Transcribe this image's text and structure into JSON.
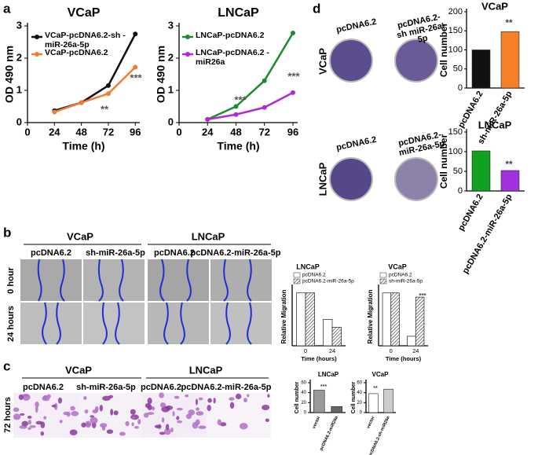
{
  "panels": [
    "a",
    "b",
    "c",
    "d"
  ],
  "panel_b": {
    "groups": [
      "VCaP",
      "LNCaP"
    ],
    "columns": [
      "pcDNA6.2",
      "sh-miR-26a-5p",
      "pcDNA6.2",
      "pcDNA6.2-miR-26a-5p"
    ],
    "rows": [
      "0 hour",
      "24 hours"
    ]
  },
  "panel_c": {
    "groups": [
      "VCaP",
      "LNCaP"
    ],
    "columns": [
      "pcDNA6.2",
      "sh-miR-26a-5p",
      "pcDNA6.2",
      "pcDNA6.2-miR-26a-5p"
    ],
    "rows": [
      "72 hours"
    ]
  },
  "panel_d": {
    "columns": [
      "pcDNA6.2",
      "pcDNA6.2-sh miR-26a-5p"
    ],
    "lncap_columns": [
      "pcDNA6.2",
      "pcDNA6.2- miR-26a-5p"
    ],
    "rows": [
      "VCaP",
      "LNCaP"
    ]
  },
  "chart_data": [
    {
      "type": "line",
      "title": "VCaP",
      "x": [
        24,
        48,
        72,
        96
      ],
      "xlim": [
        0,
        100
      ],
      "xticks": [
        0,
        24,
        48,
        72,
        96
      ],
      "ylim": [
        0,
        3
      ],
      "yticks": [
        0,
        1,
        2,
        3
      ],
      "xlabel": "Time (h)",
      "ylabel": "OD 490 nm",
      "legend": "upper left",
      "series": [
        {
          "name": "VCaP-pcDNA6.2-sh -miR-26a-5p",
          "color": "#111111",
          "values": [
            0.37,
            0.62,
            1.15,
            2.75
          ]
        },
        {
          "name": "VCaP-pcDNA6.2",
          "color": "#f07d35",
          "values": [
            0.33,
            0.62,
            0.9,
            1.72
          ]
        }
      ],
      "annotations": [
        "***",
        "**"
      ]
    },
    {
      "type": "line",
      "title": "LNCaP",
      "x": [
        24,
        48,
        72,
        96
      ],
      "xlim": [
        0,
        100
      ],
      "xticks": [
        0,
        24,
        48,
        72,
        96
      ],
      "ylim": [
        0,
        3
      ],
      "yticks": [
        0,
        1,
        2,
        3
      ],
      "xlabel": "Time (h)",
      "ylabel": "OD 490 nm",
      "legend": "upper left",
      "series": [
        {
          "name": "LNCaP-pcDNA6.2",
          "color": "#1e8a2e",
          "values": [
            0.1,
            0.5,
            1.3,
            2.78
          ]
        },
        {
          "name": "LNCaP-pcDNA6.2 -miR26a",
          "color": "#b028d8",
          "values": [
            0.1,
            0.25,
            0.47,
            0.93
          ]
        }
      ],
      "annotations": [
        "***",
        "***"
      ]
    },
    {
      "type": "bar",
      "title": "VCaP",
      "categories": [
        "pcDNA6.2",
        "sh-miR-26a-5p"
      ],
      "values": [
        100,
        148
      ],
      "colors": [
        "#111111",
        "#f4812a"
      ],
      "ylim": [
        0,
        200
      ],
      "yticks": [
        0,
        50,
        100,
        150,
        200
      ],
      "ylabel": "Cell number",
      "annotations": [
        "**"
      ]
    },
    {
      "type": "bar",
      "title": "LNCaP",
      "categories": [
        "pcDNA6.2",
        "pcDNA6.2-miR-26a-5p"
      ],
      "values": [
        102,
        52
      ],
      "colors": [
        "#12a020",
        "#a030e0"
      ],
      "ylim": [
        0,
        150
      ],
      "yticks": [
        0,
        50,
        100,
        150
      ],
      "ylabel": "Cell number",
      "annotations": [
        "**"
      ]
    },
    {
      "type": "bar",
      "title": "LNCaP",
      "categories": [
        "0",
        "24"
      ],
      "xlabel": "Time (hours)",
      "ylabel": "Relative Migration",
      "ylim": [
        0,
        1.1
      ],
      "series": [
        {
          "name": "pcDNA6.2",
          "color": "#ffffff",
          "values": [
            1.0,
            0.5
          ]
        },
        {
          "name": "pcDNA6.2-miR-26a-5p",
          "color": "#444444",
          "hatch": true,
          "values": [
            1.0,
            0.35
          ]
        }
      ]
    },
    {
      "type": "bar",
      "title": "VCaP",
      "categories": [
        "0",
        "24"
      ],
      "xlabel": "Time (hours)",
      "ylabel": "Relative Migration",
      "ylim": [
        0,
        1.1
      ],
      "series": [
        {
          "name": "pcDNA6.2",
          "color": "#ffffff",
          "values": [
            1.0,
            0.18
          ]
        },
        {
          "name": "sh-miR-26a-5p",
          "color": "#444444",
          "hatch": true,
          "values": [
            1.0,
            0.92
          ]
        }
      ],
      "annotations": [
        "***"
      ]
    },
    {
      "type": "bar",
      "title": "LNCaP",
      "categories": [
        "vector",
        "pcDNA6.2-miR26a"
      ],
      "values": [
        45,
        12
      ],
      "colors": [
        "#999999",
        "#666666"
      ],
      "ylim": [
        0,
        60
      ],
      "yticks": [
        0,
        20,
        40,
        60
      ],
      "ylabel": "Cell number",
      "annotations": [
        "***"
      ]
    },
    {
      "type": "bar",
      "title": "VCaP",
      "categories": [
        "vector",
        "pcDNA6.2-sh-miR26a"
      ],
      "values": [
        38,
        47
      ],
      "colors": [
        "#ffffff",
        "#cccccc"
      ],
      "ylim": [
        0,
        60
      ],
      "yticks": [
        0,
        20,
        40,
        60
      ],
      "ylabel": "Cell number",
      "annotations": [
        "**"
      ]
    }
  ]
}
